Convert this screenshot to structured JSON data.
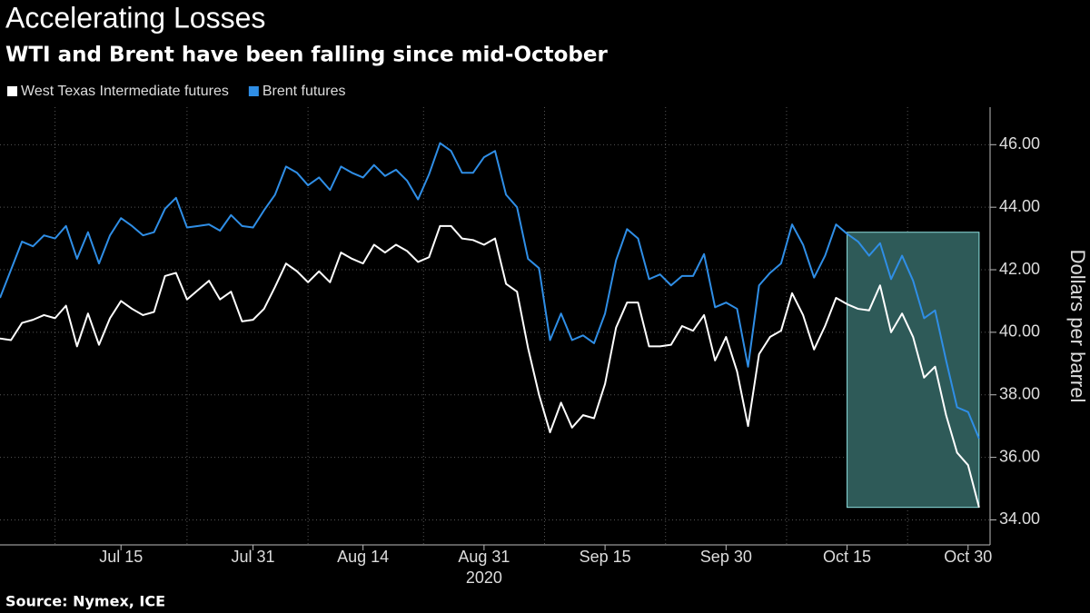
{
  "chart_data": {
    "type": "line",
    "title": "Accelerating Losses",
    "subtitle": "WTI and Brent have been falling since mid-October",
    "source": "Source: Nymex, ICE",
    "y_label": "Dollars per barrel",
    "x": [
      "2020-06-30",
      "2020-07-01",
      "2020-07-02",
      "2020-07-03",
      "2020-07-06",
      "2020-07-07",
      "2020-07-08",
      "2020-07-09",
      "2020-07-10",
      "2020-07-13",
      "2020-07-14",
      "2020-07-15",
      "2020-07-16",
      "2020-07-17",
      "2020-07-20",
      "2020-07-21",
      "2020-07-22",
      "2020-07-23",
      "2020-07-24",
      "2020-07-27",
      "2020-07-28",
      "2020-07-29",
      "2020-07-30",
      "2020-07-31",
      "2020-08-03",
      "2020-08-04",
      "2020-08-05",
      "2020-08-06",
      "2020-08-07",
      "2020-08-10",
      "2020-08-11",
      "2020-08-12",
      "2020-08-13",
      "2020-08-14",
      "2020-08-17",
      "2020-08-18",
      "2020-08-19",
      "2020-08-20",
      "2020-08-21",
      "2020-08-24",
      "2020-08-25",
      "2020-08-26",
      "2020-08-27",
      "2020-08-28",
      "2020-08-31",
      "2020-09-01",
      "2020-09-02",
      "2020-09-03",
      "2020-09-04",
      "2020-09-07",
      "2020-09-08",
      "2020-09-09",
      "2020-09-10",
      "2020-09-11",
      "2020-09-14",
      "2020-09-15",
      "2020-09-16",
      "2020-09-17",
      "2020-09-18",
      "2020-09-21",
      "2020-09-22",
      "2020-09-23",
      "2020-09-24",
      "2020-09-25",
      "2020-09-28",
      "2020-09-29",
      "2020-09-30",
      "2020-10-01",
      "2020-10-02",
      "2020-10-05",
      "2020-10-06",
      "2020-10-07",
      "2020-10-08",
      "2020-10-09",
      "2020-10-12",
      "2020-10-13",
      "2020-10-14",
      "2020-10-15",
      "2020-10-16",
      "2020-10-19",
      "2020-10-20",
      "2020-10-21",
      "2020-10-22",
      "2020-10-23",
      "2020-10-26",
      "2020-10-27",
      "2020-10-28",
      "2020-10-29",
      "2020-10-30",
      "2020-11-02"
    ],
    "series": [
      {
        "name": "West Texas Intermediate futures",
        "color": "#ffffff",
        "values": [
          39.8,
          39.75,
          40.3,
          40.4,
          40.55,
          40.45,
          40.85,
          39.55,
          40.6,
          39.6,
          40.45,
          41.0,
          40.75,
          40.55,
          40.65,
          41.8,
          41.9,
          41.05,
          41.35,
          41.65,
          41.05,
          41.3,
          40.35,
          40.4,
          40.75,
          41.45,
          42.2,
          41.95,
          41.6,
          41.95,
          41.6,
          42.55,
          42.35,
          42.2,
          42.8,
          42.55,
          42.8,
          42.6,
          42.25,
          42.4,
          43.4,
          43.4,
          43.0,
          42.95,
          42.8,
          43.0,
          41.55,
          41.3,
          39.5,
          38.0,
          36.8,
          37.75,
          36.95,
          37.35,
          37.25,
          38.35,
          40.15,
          40.95,
          40.95,
          39.55,
          39.55,
          39.6,
          40.2,
          40.05,
          40.55,
          39.1,
          39.85,
          38.75,
          37.0,
          39.3,
          39.85,
          40.05,
          41.25,
          40.55,
          39.45,
          40.2,
          41.1,
          40.9,
          40.75,
          40.7,
          41.5,
          40.0,
          40.6,
          39.85,
          38.55,
          38.9,
          37.35,
          36.15,
          35.75,
          34.4
        ]
      },
      {
        "name": "Brent futures",
        "color": "#2f8ee6",
        "values": [
          41.1,
          42.0,
          42.9,
          42.75,
          43.1,
          43.0,
          43.4,
          42.35,
          43.2,
          42.2,
          43.1,
          43.65,
          43.4,
          43.1,
          43.2,
          43.95,
          44.3,
          43.35,
          43.4,
          43.45,
          43.25,
          43.75,
          43.4,
          43.35,
          43.9,
          44.4,
          45.3,
          45.1,
          44.7,
          44.95,
          44.55,
          45.3,
          45.1,
          44.95,
          45.35,
          45.0,
          45.2,
          44.85,
          44.25,
          45.05,
          46.05,
          45.8,
          45.1,
          45.1,
          45.6,
          45.8,
          44.4,
          44.0,
          42.35,
          42.05,
          39.75,
          40.6,
          39.75,
          39.9,
          39.65,
          40.6,
          42.3,
          43.3,
          43.0,
          41.7,
          41.85,
          41.5,
          41.8,
          41.8,
          42.5,
          40.8,
          40.95,
          40.75,
          38.9,
          41.5,
          41.9,
          42.2,
          43.45,
          42.8,
          41.75,
          42.45,
          43.45,
          43.15,
          42.9,
          42.45,
          42.85,
          41.7,
          42.45,
          41.65,
          40.45,
          40.7,
          39.1,
          37.6,
          37.45,
          36.6
        ]
      }
    ],
    "xlim": [
      "2020-06-30",
      "2020-11-03"
    ],
    "xticks": [
      {
        "value": "2020-07-15",
        "label": "Jul 15"
      },
      {
        "value": "2020-07-31",
        "label": "Jul 31"
      },
      {
        "value": "2020-08-14",
        "label": "Aug 14"
      },
      {
        "value": "2020-08-31",
        "label": "Aug 31"
      },
      {
        "value": "2020-09-15",
        "label": "Sep 15"
      },
      {
        "value": "2020-09-30",
        "label": "Sep 30"
      },
      {
        "value": "2020-10-15",
        "label": "Oct 15"
      },
      {
        "value": "2020-10-30",
        "label": "Oct 30"
      }
    ],
    "x_year_label": {
      "value": "2020-08-31",
      "label": "2020"
    },
    "ylim": [
      33.2,
      47.2
    ],
    "yticks": [
      {
        "value": 34,
        "label": "34.00"
      },
      {
        "value": 36,
        "label": "36.00"
      },
      {
        "value": 38,
        "label": "38.00"
      },
      {
        "value": 40,
        "label": "40.00"
      },
      {
        "value": 42,
        "label": "42.00"
      },
      {
        "value": 44,
        "label": "44.00"
      },
      {
        "value": 46,
        "label": "46.00"
      }
    ],
    "grid": true,
    "legend": "top-left",
    "highlight": {
      "x": [
        "2020-10-15",
        "2020-11-02"
      ],
      "y": [
        34.4,
        43.2
      ],
      "color": "#2e5a58",
      "edge": "#8fe0e0"
    }
  }
}
